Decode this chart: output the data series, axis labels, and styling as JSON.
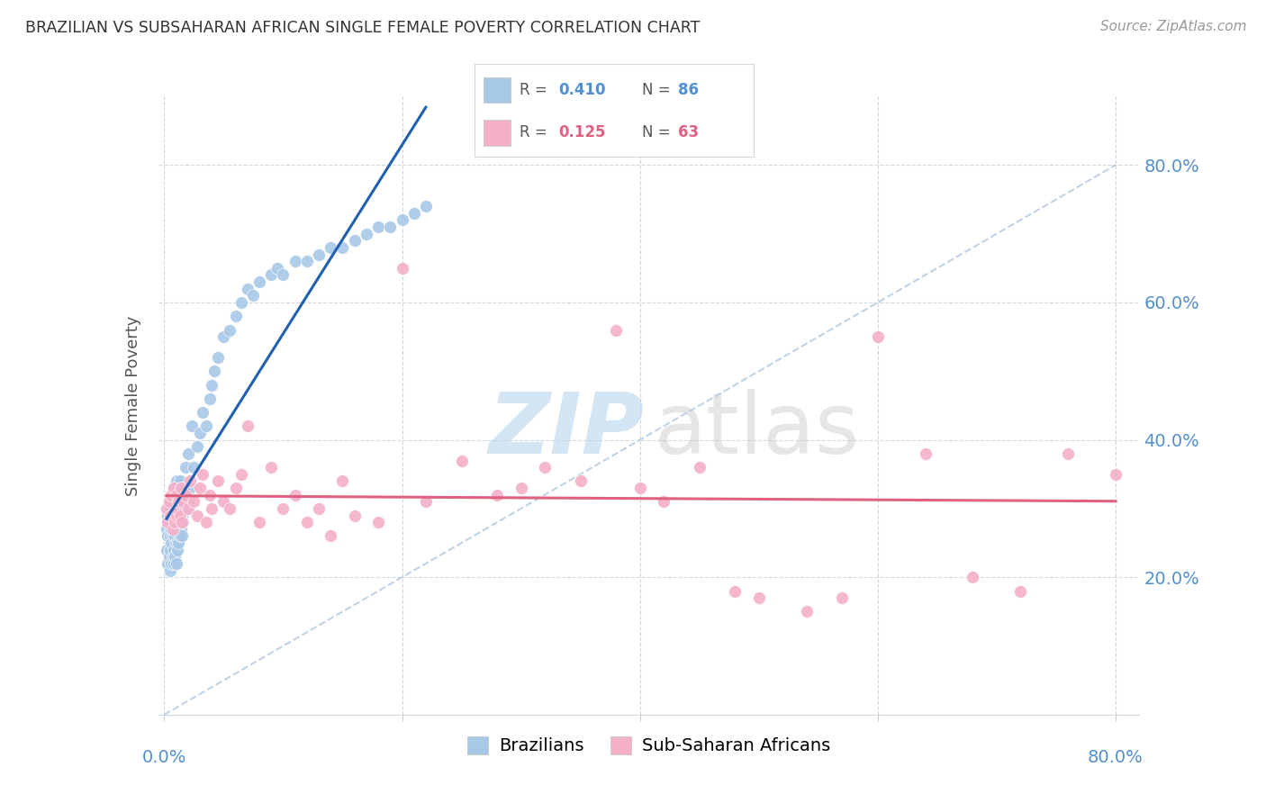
{
  "title": "BRAZILIAN VS SUBSAHARAN AFRICAN SINGLE FEMALE POVERTY CORRELATION CHART",
  "source": "Source: ZipAtlas.com",
  "ylabel": "Single Female Poverty",
  "ytick_labels": [
    "80.0%",
    "60.0%",
    "40.0%",
    "20.0%"
  ],
  "ytick_values": [
    0.8,
    0.6,
    0.4,
    0.2
  ],
  "xtick_labels": [
    "0.0%",
    "80.0%"
  ],
  "xtick_values": [
    0.0,
    0.8
  ],
  "xlim": [
    -0.005,
    0.82
  ],
  "ylim": [
    0.0,
    0.9
  ],
  "blue_dot_color": "#a8c8e8",
  "pink_dot_color": "#f4b0c8",
  "blue_line_color": "#2060b0",
  "pink_line_color": "#e06080",
  "diag_color": "#b0c8e0",
  "axis_tick_color": "#5090d0",
  "title_color": "#333333",
  "source_color": "#999999",
  "brazilians_x": [
    0.002,
    0.002,
    0.003,
    0.003,
    0.003,
    0.004,
    0.004,
    0.005,
    0.005,
    0.005,
    0.005,
    0.006,
    0.006,
    0.006,
    0.006,
    0.007,
    0.007,
    0.007,
    0.007,
    0.008,
    0.008,
    0.008,
    0.008,
    0.008,
    0.009,
    0.009,
    0.009,
    0.01,
    0.01,
    0.01,
    0.01,
    0.01,
    0.01,
    0.011,
    0.011,
    0.011,
    0.012,
    0.012,
    0.012,
    0.013,
    0.013,
    0.013,
    0.014,
    0.014,
    0.015,
    0.015,
    0.015,
    0.016,
    0.016,
    0.018,
    0.018,
    0.02,
    0.02,
    0.022,
    0.023,
    0.025,
    0.028,
    0.03,
    0.032,
    0.035,
    0.038,
    0.04,
    0.042,
    0.045,
    0.05,
    0.055,
    0.06,
    0.065,
    0.07,
    0.075,
    0.08,
    0.09,
    0.095,
    0.1,
    0.11,
    0.12,
    0.13,
    0.14,
    0.15,
    0.16,
    0.17,
    0.18,
    0.19,
    0.2,
    0.21,
    0.22
  ],
  "brazilians_y": [
    0.24,
    0.27,
    0.22,
    0.26,
    0.29,
    0.23,
    0.28,
    0.21,
    0.24,
    0.26,
    0.3,
    0.22,
    0.25,
    0.27,
    0.31,
    0.23,
    0.26,
    0.28,
    0.32,
    0.22,
    0.24,
    0.27,
    0.29,
    0.33,
    0.23,
    0.26,
    0.3,
    0.22,
    0.25,
    0.27,
    0.29,
    0.31,
    0.34,
    0.24,
    0.27,
    0.31,
    0.25,
    0.28,
    0.32,
    0.26,
    0.3,
    0.34,
    0.27,
    0.32,
    0.26,
    0.29,
    0.33,
    0.28,
    0.33,
    0.3,
    0.36,
    0.31,
    0.38,
    0.33,
    0.42,
    0.36,
    0.39,
    0.41,
    0.44,
    0.42,
    0.46,
    0.48,
    0.5,
    0.52,
    0.55,
    0.56,
    0.58,
    0.6,
    0.62,
    0.61,
    0.63,
    0.64,
    0.65,
    0.64,
    0.66,
    0.66,
    0.67,
    0.68,
    0.68,
    0.69,
    0.7,
    0.71,
    0.71,
    0.72,
    0.73,
    0.74
  ],
  "subsaharan_x": [
    0.002,
    0.003,
    0.004,
    0.005,
    0.006,
    0.007,
    0.008,
    0.009,
    0.01,
    0.01,
    0.011,
    0.012,
    0.013,
    0.014,
    0.015,
    0.016,
    0.018,
    0.02,
    0.022,
    0.025,
    0.028,
    0.03,
    0.032,
    0.035,
    0.038,
    0.04,
    0.045,
    0.05,
    0.055,
    0.06,
    0.065,
    0.07,
    0.08,
    0.09,
    0.1,
    0.11,
    0.12,
    0.13,
    0.14,
    0.15,
    0.16,
    0.18,
    0.2,
    0.22,
    0.25,
    0.28,
    0.3,
    0.32,
    0.35,
    0.38,
    0.4,
    0.42,
    0.45,
    0.48,
    0.5,
    0.54,
    0.57,
    0.6,
    0.64,
    0.68,
    0.72,
    0.76,
    0.8
  ],
  "subsaharan_y": [
    0.3,
    0.28,
    0.31,
    0.29,
    0.32,
    0.27,
    0.33,
    0.28,
    0.29,
    0.32,
    0.3,
    0.31,
    0.29,
    0.33,
    0.28,
    0.31,
    0.32,
    0.3,
    0.34,
    0.31,
    0.29,
    0.33,
    0.35,
    0.28,
    0.32,
    0.3,
    0.34,
    0.31,
    0.3,
    0.33,
    0.35,
    0.42,
    0.28,
    0.36,
    0.3,
    0.32,
    0.28,
    0.3,
    0.26,
    0.34,
    0.29,
    0.28,
    0.65,
    0.31,
    0.37,
    0.32,
    0.33,
    0.36,
    0.34,
    0.56,
    0.33,
    0.31,
    0.36,
    0.18,
    0.17,
    0.15,
    0.17,
    0.55,
    0.38,
    0.2,
    0.18,
    0.38,
    0.35
  ]
}
